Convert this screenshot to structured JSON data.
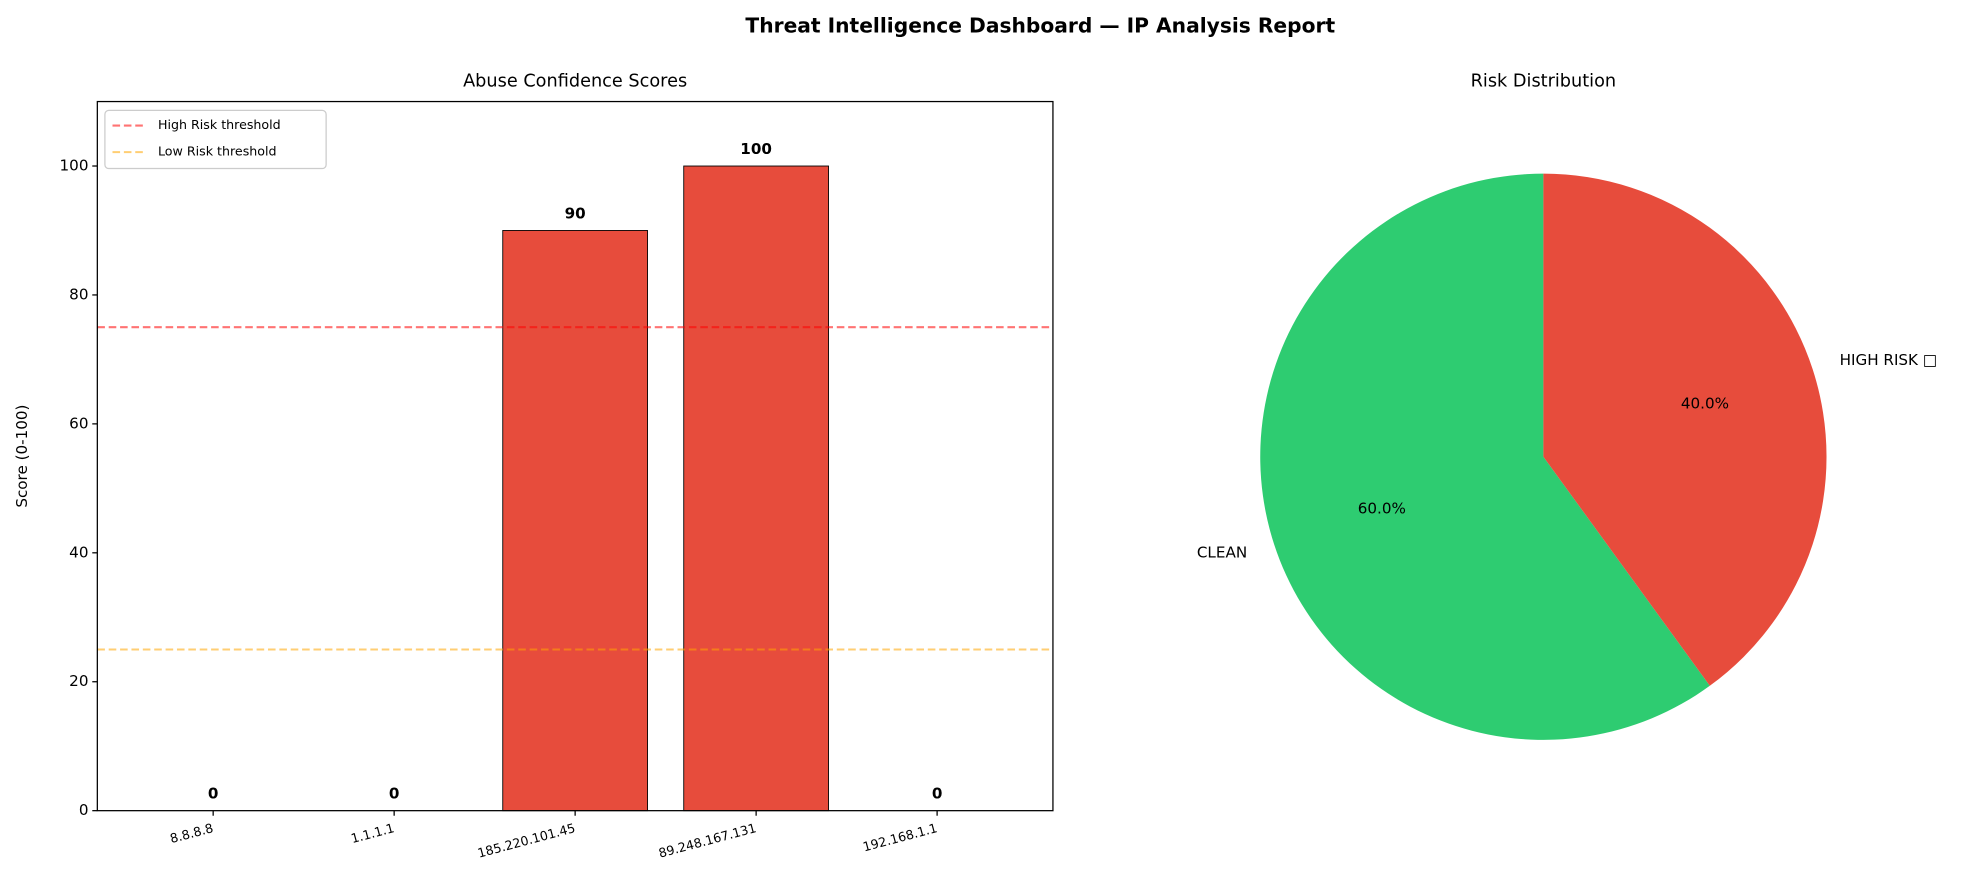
{
  "title": "Threat Intelligence Dashboard — IP Analysis Report",
  "chart_data": [
    {
      "type": "bar",
      "title": "Abuse Confidence Scores",
      "y_label": "Score (0-100)",
      "categories": [
        "8.8.8.8",
        "1.1.1.1",
        "185.220.101.45",
        "89.248.167.131",
        "192.168.1.1"
      ],
      "values": [
        0,
        0,
        90,
        100,
        0
      ],
      "colors": [
        "#2ecc71",
        "#2ecc71",
        "#e74c3c",
        "#e74c3c",
        "#2ecc71"
      ],
      "ylim": [
        0,
        110
      ],
      "yticks": [
        0,
        20,
        40,
        60,
        80,
        100
      ],
      "reference_lines": [
        {
          "name": "High Risk threshold",
          "value": 75,
          "color": "#ff0000"
        },
        {
          "name": "Low Risk threshold",
          "value": 25,
          "color": "#ffa500"
        }
      ],
      "legend": "upper left"
    },
    {
      "type": "pie",
      "title": "Risk Distribution",
      "categories": [
        "CLEAN",
        "HIGH RISK □"
      ],
      "values": [
        60,
        40
      ],
      "value_labels": [
        "60.0%",
        "40.0%"
      ],
      "colors": [
        "#2ecc71",
        "#e74c3c"
      ],
      "start_angle": 90
    }
  ]
}
